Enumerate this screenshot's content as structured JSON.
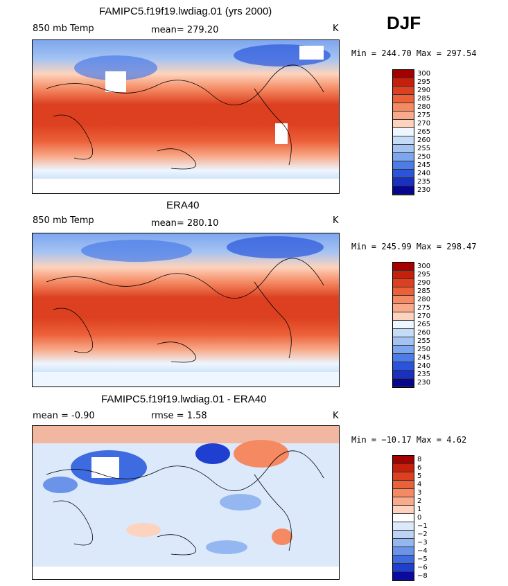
{
  "season": "DJF",
  "panels": [
    {
      "id": "model",
      "title": "FAMIPC5.f19f19.lwdiag.01 (yrs 2000)",
      "left_label": "850 mb Temp",
      "mid_label": "mean=  279.20",
      "right_label": "K",
      "minmax": "Min = 244.70 Max = 297.54",
      "colorbar": {
        "labels": [
          "300",
          "295",
          "290",
          "285",
          "280",
          "275",
          "270",
          "265",
          "260",
          "255",
          "250",
          "245",
          "240",
          "235",
          "230"
        ],
        "colors": [
          "#a40000",
          "#c4200c",
          "#dc4020",
          "#ec6039",
          "#f48962",
          "#f8aa8a",
          "#fdd3bd",
          "#eef6ff",
          "#c5dcf7",
          "#a3c3f3",
          "#7ea6ee",
          "#4c7ce7",
          "#2a55db",
          "#1930c0",
          "#06068e"
        ]
      }
    },
    {
      "id": "obs",
      "title": "ERA40",
      "left_label": "850 mb Temp",
      "mid_label": "mean=  280.10",
      "right_label": "K",
      "minmax": "Min = 245.99 Max = 298.47",
      "colorbar": {
        "labels": [
          "300",
          "295",
          "290",
          "285",
          "280",
          "275",
          "270",
          "265",
          "260",
          "255",
          "250",
          "245",
          "240",
          "235",
          "230"
        ],
        "colors": [
          "#a40000",
          "#c4200c",
          "#dc4020",
          "#ec6039",
          "#f48962",
          "#f8aa8a",
          "#fdd3bd",
          "#eef6ff",
          "#c5dcf7",
          "#a3c3f3",
          "#7ea6ee",
          "#4c7ce7",
          "#2a55db",
          "#1930c0",
          "#06068e"
        ]
      }
    },
    {
      "id": "diff",
      "title": "FAMIPC5.f19f19.lwdiag.01 - ERA40",
      "left_label": "mean =   -0.90",
      "mid_label": "rmse =    1.58",
      "right_label": "K",
      "minmax": "Min = −10.17 Max =   4.62",
      "colorbar": {
        "labels": [
          "8",
          "6",
          "5",
          "4",
          "3",
          "2",
          "1",
          "0",
          "−1",
          "−2",
          "−3",
          "−4",
          "−5",
          "−6",
          "−8"
        ],
        "colors": [
          "#a40000",
          "#c4200c",
          "#dc4020",
          "#ec6039",
          "#f48962",
          "#f8aa8a",
          "#fdd3bd",
          "#ffffff",
          "#dbe9fb",
          "#bcd3f6",
          "#95b7f1",
          "#6c93ea",
          "#3f6be0",
          "#1e3fd0",
          "#0a0aa0"
        ]
      }
    }
  ]
}
